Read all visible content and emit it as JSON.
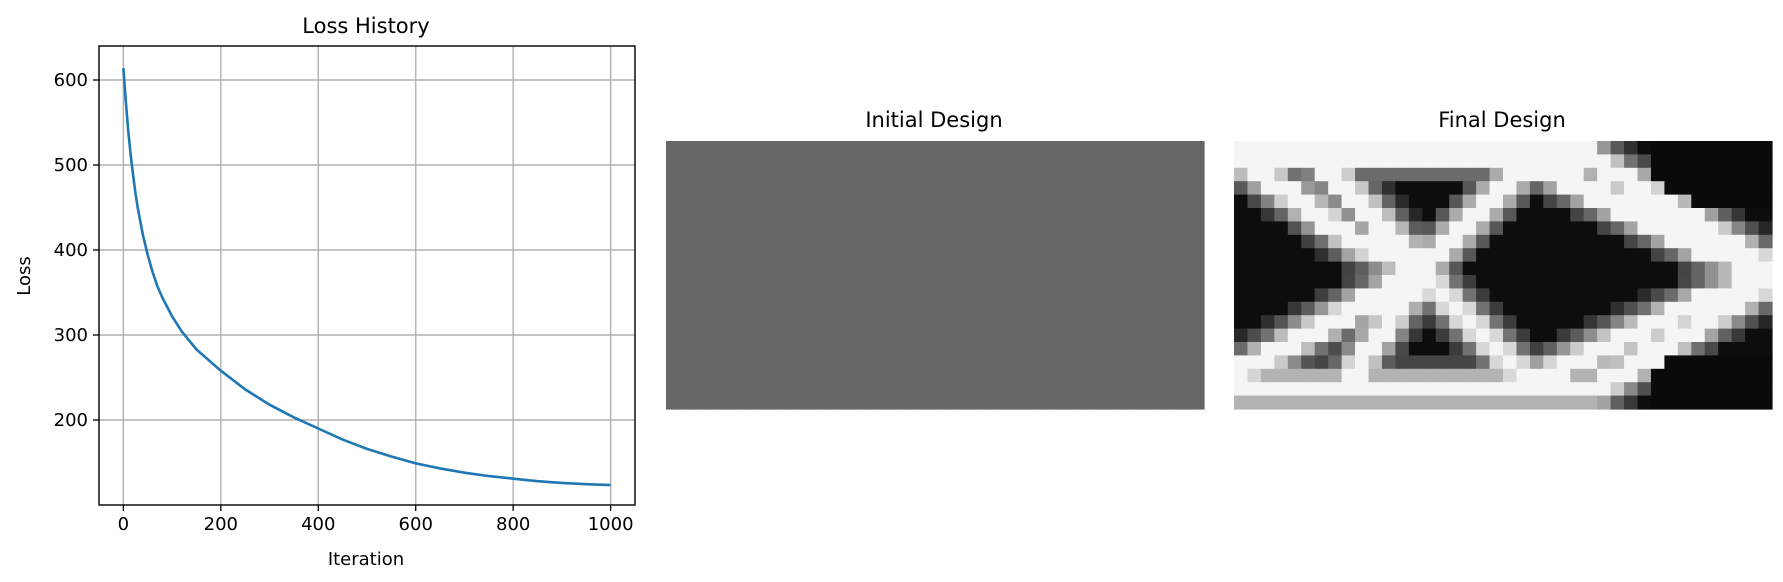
{
  "chart_data": [
    {
      "type": "line",
      "title": "Loss History",
      "xlabel": "Iteration",
      "ylabel": "Loss",
      "xlim": [
        -50,
        1050
      ],
      "ylim": [
        100,
        640
      ],
      "xticks": [
        0,
        200,
        400,
        600,
        800,
        1000
      ],
      "yticks": [
        200,
        300,
        400,
        500,
        600
      ],
      "grid": true,
      "series": [
        {
          "color": "#1f77b4",
          "x": [
            0,
            5,
            10,
            15,
            20,
            25,
            30,
            40,
            50,
            60,
            70,
            80,
            100,
            120,
            150,
            200,
            250,
            300,
            350,
            400,
            450,
            500,
            550,
            600,
            650,
            700,
            750,
            800,
            850,
            900,
            950,
            1000
          ],
          "y": [
            614,
            575,
            540,
            512,
            488,
            466,
            448,
            418,
            394,
            374,
            357,
            344,
            322,
            304,
            283,
            258,
            236,
            218,
            203,
            190,
            177,
            166,
            157,
            149,
            143,
            138,
            134,
            131,
            128,
            126,
            124.5,
            123.5
          ]
        }
      ]
    },
    {
      "type": "heatmap",
      "title": "Initial Design",
      "colormap": "gray_r",
      "rows": 20,
      "cols": 40,
      "uniform_value": 0.6
    },
    {
      "type": "heatmap",
      "title": "Final Design",
      "colormap": "gray_r",
      "rows": 20,
      "cols": 40,
      "description_values": "0 = white (empty), 1 = black (material)"
    }
  ]
}
